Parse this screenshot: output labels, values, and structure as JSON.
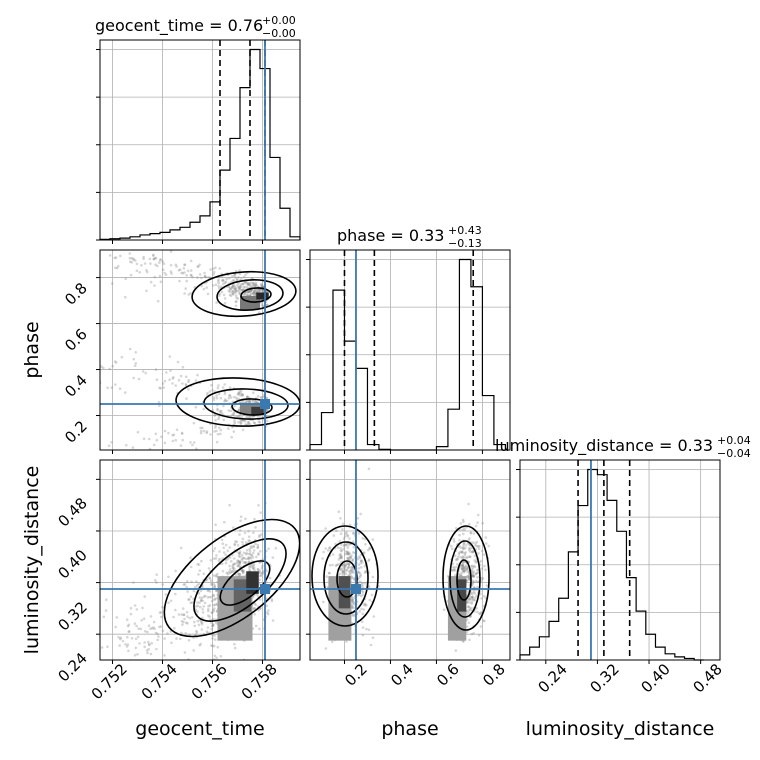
{
  "chart_data": {
    "type": "corner",
    "parameters": [
      "geocent_time",
      "phase",
      "luminosity_distance"
    ],
    "truths": {
      "geocent_time": 0.7581,
      "phase": 0.25,
      "luminosity_distance": 0.31
    },
    "titles": [
      {
        "name": "geocent_time",
        "value": "0.76",
        "plus": "+0.00",
        "minus": "−0.00"
      },
      {
        "name": "phase",
        "value": "0.33",
        "plus": "+0.43",
        "minus": "−0.13"
      },
      {
        "name": "luminosity_distance",
        "value": "0.33",
        "plus": "+0.04",
        "minus": "−0.04"
      }
    ],
    "axes": {
      "geocent_time": {
        "range": [
          0.7515,
          0.7595
        ],
        "ticks": [
          "0.752",
          "0.754",
          "0.756",
          "0.758"
        ]
      },
      "phase": {
        "range": [
          0.05,
          0.92
        ],
        "ticks": [
          "0.2",
          "0.4",
          "0.6",
          "0.8"
        ]
      },
      "luminosity_distance": {
        "range": [
          0.2,
          0.51
        ],
        "ticks": [
          "0.24",
          "0.32",
          "0.40",
          "0.48"
        ]
      }
    },
    "marginals": {
      "geocent_time": {
        "edges": [
          0.7515,
          0.7519,
          0.7523,
          0.7527,
          0.7531,
          0.7535,
          0.7539,
          0.7543,
          0.7547,
          0.7551,
          0.7555,
          0.7559,
          0.7563,
          0.7567,
          0.7571,
          0.7575,
          0.7579,
          0.7583,
          0.7587,
          0.7591,
          0.7595
        ],
        "counts": [
          1,
          2,
          3,
          5,
          8,
          10,
          12,
          16,
          20,
          28,
          38,
          60,
          110,
          160,
          240,
          300,
          270,
          130,
          50,
          5
        ],
        "quantiles": [
          0.7563,
          0.7575,
          0.7581
        ]
      },
      "phase": {
        "edges": [
          0.05,
          0.1,
          0.15,
          0.2,
          0.25,
          0.3,
          0.35,
          0.4,
          0.45,
          0.5,
          0.55,
          0.6,
          0.65,
          0.7,
          0.75,
          0.8,
          0.85,
          0.9
        ],
        "counts": [
          8,
          55,
          235,
          160,
          120,
          8,
          1,
          0,
          0,
          0,
          0,
          5,
          60,
          280,
          240,
          80,
          8
        ],
        "quantiles": [
          0.2,
          0.33,
          0.76
        ]
      },
      "luminosity_distance": {
        "edges": [
          0.2,
          0.215,
          0.23,
          0.245,
          0.26,
          0.275,
          0.29,
          0.305,
          0.32,
          0.335,
          0.35,
          0.365,
          0.38,
          0.395,
          0.41,
          0.425,
          0.44,
          0.455,
          0.47,
          0.485
        ],
        "counts": [
          10,
          25,
          45,
          75,
          120,
          210,
          300,
          370,
          360,
          310,
          250,
          160,
          95,
          50,
          25,
          12,
          6,
          3,
          0
        ],
        "quantiles": [
          0.29,
          0.33,
          0.37
        ]
      }
    }
  }
}
